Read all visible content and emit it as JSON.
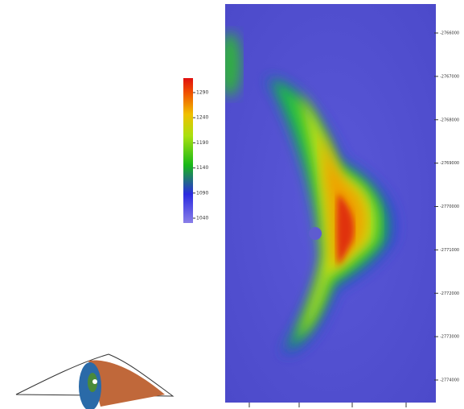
{
  "colorbar": {
    "ticks": [
      1290,
      1240,
      1190,
      1140,
      1090,
      1040
    ]
  },
  "map": {
    "northing_labels": [
      -2766000,
      -2767000,
      -2768000,
      -2769000,
      -2770000,
      -2771000,
      -2772000,
      -2773000,
      -2774000
    ]
  }
}
